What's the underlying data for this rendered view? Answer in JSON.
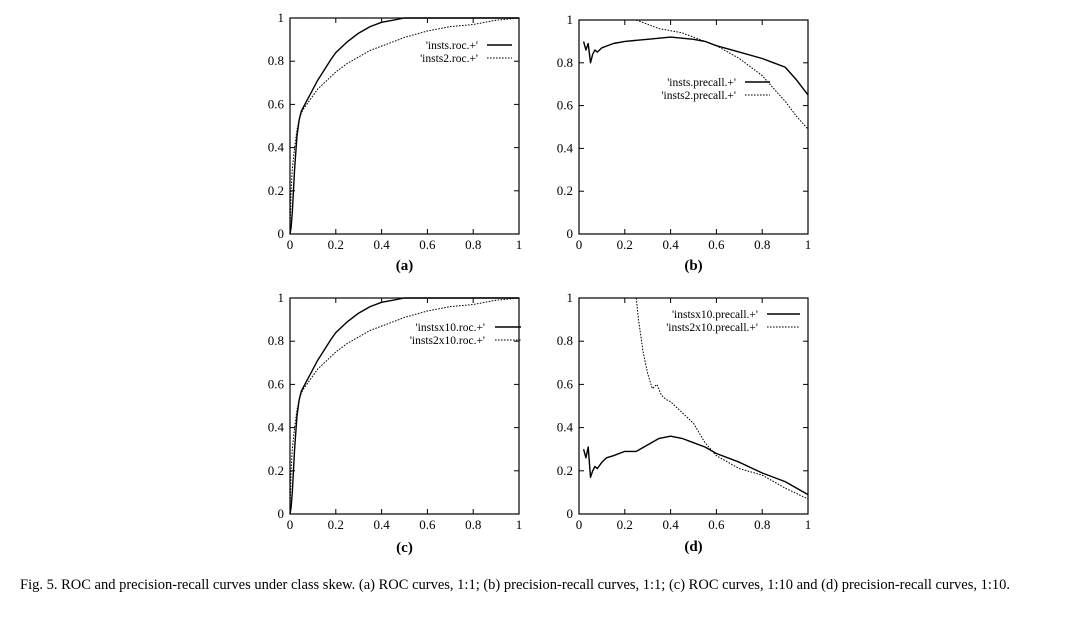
{
  "caption": "Fig. 5. ROC and precision-recall curves under class skew. (a) ROC curves, 1:1; (b) precision-recall curves, 1:1; (c) ROC curves, 1:10 and (d) precision-recall curves, 1:10.",
  "chart_data": [
    {
      "type": "line",
      "panel_label": "(a)",
      "xlim": [
        0,
        1
      ],
      "ylim": [
        0,
        1
      ],
      "xticks": [
        "0",
        "0.2",
        "0.4",
        "0.6",
        "0.8",
        "1"
      ],
      "yticks": [
        "0",
        "0.2",
        "0.4",
        "0.6",
        "0.8",
        "1"
      ],
      "legend_position": "top-right",
      "series": [
        {
          "name": "'insts.roc.+'",
          "style": "solid",
          "x": [
            0,
            0.005,
            0.01,
            0.02,
            0.03,
            0.04,
            0.05,
            0.06,
            0.08,
            0.1,
            0.12,
            0.15,
            0.18,
            0.2,
            0.25,
            0.3,
            0.35,
            0.4,
            0.45,
            0.5,
            0.6,
            0.7,
            0.8,
            0.9,
            1.0
          ],
          "y": [
            0,
            0.03,
            0.1,
            0.3,
            0.45,
            0.53,
            0.57,
            0.59,
            0.63,
            0.67,
            0.71,
            0.76,
            0.81,
            0.84,
            0.89,
            0.93,
            0.96,
            0.98,
            0.99,
            1.0,
            1.0,
            1.0,
            1.0,
            1.0,
            1.0
          ]
        },
        {
          "name": "'insts2.roc.+'",
          "style": "dashed",
          "x": [
            0,
            0.005,
            0.01,
            0.02,
            0.03,
            0.04,
            0.05,
            0.06,
            0.08,
            0.1,
            0.12,
            0.15,
            0.18,
            0.2,
            0.25,
            0.3,
            0.35,
            0.4,
            0.45,
            0.5,
            0.6,
            0.7,
            0.8,
            0.9,
            1.0
          ],
          "y": [
            0,
            0.2,
            0.3,
            0.4,
            0.48,
            0.53,
            0.56,
            0.58,
            0.61,
            0.64,
            0.67,
            0.7,
            0.73,
            0.75,
            0.79,
            0.82,
            0.85,
            0.87,
            0.89,
            0.91,
            0.94,
            0.96,
            0.97,
            0.99,
            1.0
          ]
        }
      ]
    },
    {
      "type": "line",
      "panel_label": "(b)",
      "xlim": [
        0,
        1
      ],
      "ylim": [
        0,
        1
      ],
      "xticks": [
        "0",
        "0.2",
        "0.4",
        "0.6",
        "0.8",
        "1"
      ],
      "yticks": [
        "0",
        "0.2",
        "0.4",
        "0.6",
        "0.8",
        "1"
      ],
      "legend_position": "center-right",
      "series": [
        {
          "name": "'insts.precall.+'",
          "style": "solid",
          "x": [
            0.02,
            0.03,
            0.04,
            0.05,
            0.06,
            0.07,
            0.08,
            0.1,
            0.15,
            0.2,
            0.3,
            0.4,
            0.5,
            0.55,
            0.6,
            0.7,
            0.8,
            0.85,
            0.9,
            0.95,
            1.0
          ],
          "y": [
            0.9,
            0.86,
            0.89,
            0.8,
            0.84,
            0.86,
            0.85,
            0.87,
            0.89,
            0.9,
            0.91,
            0.92,
            0.91,
            0.9,
            0.88,
            0.85,
            0.82,
            0.8,
            0.78,
            0.72,
            0.65
          ]
        },
        {
          "name": "'insts2.precall.+'",
          "style": "dashed",
          "x": [
            0.25,
            0.3,
            0.35,
            0.4,
            0.45,
            0.5,
            0.55,
            0.6,
            0.65,
            0.7,
            0.75,
            0.8,
            0.85,
            0.9,
            0.95,
            1.0
          ],
          "y": [
            1.0,
            0.98,
            0.96,
            0.95,
            0.94,
            0.92,
            0.9,
            0.88,
            0.85,
            0.82,
            0.78,
            0.74,
            0.68,
            0.62,
            0.55,
            0.49
          ]
        }
      ]
    },
    {
      "type": "line",
      "panel_label": "(c)",
      "xlim": [
        0,
        1
      ],
      "ylim": [
        0,
        1
      ],
      "xticks": [
        "0",
        "0.2",
        "0.4",
        "0.6",
        "0.8",
        "1"
      ],
      "yticks": [
        "0",
        "0.2",
        "0.4",
        "0.6",
        "0.8",
        "1"
      ],
      "legend_position": "top-right",
      "series": [
        {
          "name": "'instsx10.roc.+'",
          "style": "solid",
          "x": [
            0,
            0.005,
            0.01,
            0.02,
            0.03,
            0.04,
            0.05,
            0.06,
            0.08,
            0.1,
            0.12,
            0.15,
            0.18,
            0.2,
            0.25,
            0.3,
            0.35,
            0.4,
            0.45,
            0.5,
            0.6,
            0.7,
            0.8,
            0.9,
            1.0
          ],
          "y": [
            0,
            0.03,
            0.1,
            0.3,
            0.45,
            0.53,
            0.57,
            0.59,
            0.63,
            0.67,
            0.71,
            0.76,
            0.81,
            0.84,
            0.89,
            0.93,
            0.96,
            0.98,
            0.99,
            1.0,
            1.0,
            1.0,
            1.0,
            1.0,
            1.0
          ]
        },
        {
          "name": "'insts2x10.roc.+'",
          "style": "dashed",
          "x": [
            0,
            0.005,
            0.01,
            0.02,
            0.03,
            0.04,
            0.05,
            0.06,
            0.08,
            0.1,
            0.12,
            0.15,
            0.18,
            0.2,
            0.25,
            0.3,
            0.35,
            0.4,
            0.45,
            0.5,
            0.6,
            0.7,
            0.8,
            0.9,
            1.0
          ],
          "y": [
            0,
            0.2,
            0.3,
            0.4,
            0.48,
            0.53,
            0.56,
            0.58,
            0.61,
            0.64,
            0.67,
            0.7,
            0.73,
            0.75,
            0.79,
            0.82,
            0.85,
            0.87,
            0.89,
            0.91,
            0.94,
            0.96,
            0.97,
            0.99,
            1.0
          ]
        }
      ]
    },
    {
      "type": "line",
      "panel_label": "(d)",
      "xlim": [
        0,
        1
      ],
      "ylim": [
        0,
        1
      ],
      "xticks": [
        "0",
        "0.2",
        "0.4",
        "0.6",
        "0.8",
        "1"
      ],
      "yticks": [
        "0",
        "0.2",
        "0.4",
        "0.6",
        "0.8",
        "1"
      ],
      "legend_position": "top-right",
      "series": [
        {
          "name": "'instsx10.precall.+'",
          "style": "solid",
          "x": [
            0.02,
            0.03,
            0.04,
            0.05,
            0.06,
            0.07,
            0.08,
            0.1,
            0.12,
            0.15,
            0.2,
            0.25,
            0.3,
            0.35,
            0.4,
            0.45,
            0.5,
            0.55,
            0.6,
            0.7,
            0.8,
            0.9,
            1.0
          ],
          "y": [
            0.3,
            0.26,
            0.31,
            0.17,
            0.2,
            0.22,
            0.21,
            0.24,
            0.26,
            0.27,
            0.29,
            0.29,
            0.32,
            0.35,
            0.36,
            0.35,
            0.33,
            0.31,
            0.28,
            0.24,
            0.19,
            0.15,
            0.09
          ]
        },
        {
          "name": "'insts2x10.precall.+'",
          "style": "dashed",
          "x": [
            0.25,
            0.26,
            0.28,
            0.3,
            0.32,
            0.34,
            0.36,
            0.38,
            0.4,
            0.45,
            0.5,
            0.55,
            0.6,
            0.7,
            0.8,
            0.9,
            1.0
          ],
          "y": [
            1.0,
            0.9,
            0.75,
            0.65,
            0.58,
            0.6,
            0.55,
            0.53,
            0.52,
            0.47,
            0.42,
            0.33,
            0.27,
            0.21,
            0.18,
            0.12,
            0.07
          ]
        }
      ]
    }
  ]
}
